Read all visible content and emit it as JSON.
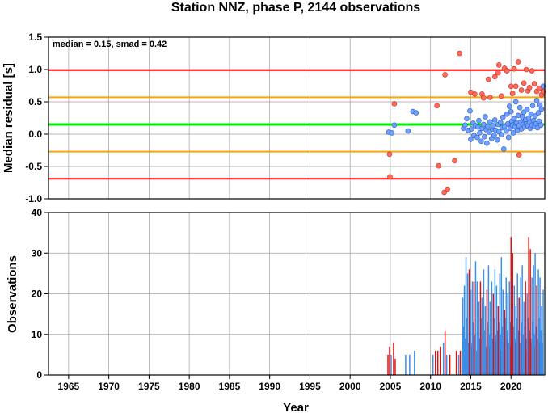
{
  "colors": {
    "grid": "#a0a0a0",
    "red_line": "#ff0000",
    "orange_line": "#ffa500",
    "green_line": "#00ee00",
    "point_in": "#6fa0ff",
    "point_out": "#ff6a5a",
    "bar_blue": "#3a8fe8",
    "bar_red": "#e01010"
  },
  "chart_data": [
    {
      "type": "scatter",
      "title": "Station NNZ, phase P, 2144 observations",
      "annotation": "median = 0.15, smad = 0.42",
      "ylabel": "Median residual [s]",
      "xlim": [
        1962.5,
        2024.2
      ],
      "ylim": [
        -1.0,
        1.5
      ],
      "yticks": [
        "-1.0",
        "-0.5",
        "0.0",
        "0.5",
        "1.0",
        "1.5"
      ],
      "ytick_values": [
        -1.0,
        -0.5,
        0.0,
        0.5,
        1.0,
        1.5
      ],
      "grid": true,
      "reference_lines": [
        {
          "y": 0.99,
          "color": "red"
        },
        {
          "y": 0.57,
          "color": "orange"
        },
        {
          "y": 0.15,
          "color": "green"
        },
        {
          "y": -0.27,
          "color": "orange"
        },
        {
          "y": -0.69,
          "color": "red"
        }
      ],
      "outliers": [
        [
          2004.9,
          -0.31
        ],
        [
          2004.95,
          -0.66
        ],
        [
          2005.5,
          0.47
        ],
        [
          2010.8,
          0.44
        ],
        [
          2011.0,
          -0.49
        ],
        [
          2011.8,
          0.92
        ],
        [
          2011.7,
          -0.9
        ],
        [
          2012.1,
          -0.85
        ],
        [
          2013.0,
          -0.41
        ],
        [
          2013.6,
          1.25
        ],
        [
          2015.0,
          0.65
        ],
        [
          2015.5,
          0.62
        ],
        [
          2016.4,
          0.62
        ],
        [
          2016.6,
          0.56
        ],
        [
          2017.2,
          0.85
        ],
        [
          2017.4,
          0.57
        ],
        [
          2018.0,
          0.89
        ],
        [
          2018.4,
          0.95
        ],
        [
          2018.5,
          1.07
        ],
        [
          2018.8,
          0.59
        ],
        [
          2019.2,
          1.02
        ],
        [
          2019.5,
          0.98
        ],
        [
          2020.0,
          0.74
        ],
        [
          2020.2,
          0.63
        ],
        [
          2020.4,
          1.01
        ],
        [
          2020.6,
          0.74
        ],
        [
          2020.9,
          1.12
        ],
        [
          2021.0,
          -0.32
        ],
        [
          2021.3,
          0.68
        ],
        [
          2021.6,
          0.79
        ],
        [
          2021.9,
          1.0
        ],
        [
          2022.1,
          0.67
        ],
        [
          2022.3,
          0.72
        ],
        [
          2022.6,
          0.98
        ],
        [
          2022.9,
          0.78
        ],
        [
          2023.2,
          0.66
        ],
        [
          2023.5,
          0.71
        ],
        [
          2023.8,
          0.61
        ],
        [
          2024.0,
          0.66
        ]
      ],
      "inliers": [
        [
          2004.8,
          0.03
        ],
        [
          2005.2,
          0.02
        ],
        [
          2005.5,
          0.14
        ],
        [
          2007.2,
          0.05
        ],
        [
          2007.8,
          0.35
        ],
        [
          2008.2,
          0.33
        ],
        [
          2014.1,
          0.09
        ],
        [
          2014.3,
          0.14
        ],
        [
          2014.5,
          0.24
        ],
        [
          2014.7,
          0.06
        ],
        [
          2014.9,
          0.36
        ],
        [
          2015.0,
          -0.08
        ],
        [
          2015.1,
          0.08
        ],
        [
          2015.3,
          0.17
        ],
        [
          2015.4,
          -0.02
        ],
        [
          2015.6,
          0.13
        ],
        [
          2015.8,
          -0.05
        ],
        [
          2015.9,
          0.11
        ],
        [
          2016.0,
          0.21
        ],
        [
          2016.1,
          0.02
        ],
        [
          2016.3,
          -0.11
        ],
        [
          2016.4,
          0.09
        ],
        [
          2016.6,
          0.15
        ],
        [
          2016.7,
          -0.04
        ],
        [
          2016.8,
          0.27
        ],
        [
          2016.9,
          0.07
        ],
        [
          2017.0,
          -0.14
        ],
        [
          2017.1,
          0.12
        ],
        [
          2017.3,
          0.03
        ],
        [
          2017.4,
          0.19
        ],
        [
          2017.6,
          -0.07
        ],
        [
          2017.7,
          0.08
        ],
        [
          2017.8,
          0.13
        ],
        [
          2017.9,
          -0.02
        ],
        [
          2018.0,
          0.22
        ],
        [
          2018.1,
          0.06
        ],
        [
          2018.3,
          -0.09
        ],
        [
          2018.4,
          0.15
        ],
        [
          2018.5,
          0.04
        ],
        [
          2018.7,
          0.18
        ],
        [
          2018.8,
          -0.01
        ],
        [
          2018.9,
          0.1
        ],
        [
          2019.0,
          0.26
        ],
        [
          2019.1,
          -0.23
        ],
        [
          2019.2,
          0.12
        ],
        [
          2019.4,
          0.05
        ],
        [
          2019.5,
          0.31
        ],
        [
          2019.6,
          0.16
        ],
        [
          2019.7,
          -0.05
        ],
        [
          2019.8,
          0.43
        ],
        [
          2019.9,
          0.09
        ],
        [
          2020.0,
          0.35
        ],
        [
          2020.1,
          0.2
        ],
        [
          2020.2,
          0.14
        ],
        [
          2020.3,
          0.02
        ],
        [
          2020.4,
          0.24
        ],
        [
          2020.5,
          0.11
        ],
        [
          2020.6,
          0.5
        ],
        [
          2020.7,
          0.17
        ],
        [
          2020.8,
          0.06
        ],
        [
          2020.9,
          0.29
        ],
        [
          2021.0,
          0.13
        ],
        [
          2021.1,
          0.41
        ],
        [
          2021.2,
          0.19
        ],
        [
          2021.3,
          0.08
        ],
        [
          2021.4,
          0.27
        ],
        [
          2021.5,
          0.15
        ],
        [
          2021.6,
          0.34
        ],
        [
          2021.7,
          0.11
        ],
        [
          2021.8,
          0.22
        ],
        [
          2021.9,
          0.16
        ],
        [
          2022.0,
          0.38
        ],
        [
          2022.1,
          0.13
        ],
        [
          2022.2,
          0.25
        ],
        [
          2022.3,
          0.18
        ],
        [
          2022.4,
          0.09
        ],
        [
          2022.5,
          0.31
        ],
        [
          2022.6,
          0.14
        ],
        [
          2022.7,
          0.44
        ],
        [
          2022.8,
          0.21
        ],
        [
          2022.9,
          0.12
        ],
        [
          2023.0,
          0.28
        ],
        [
          2023.1,
          0.16
        ],
        [
          2023.2,
          0.52
        ],
        [
          2023.3,
          0.1
        ],
        [
          2023.4,
          0.33
        ],
        [
          2023.5,
          0.2
        ],
        [
          2023.6,
          0.45
        ],
        [
          2023.7,
          0.14
        ],
        [
          2023.8,
          0.39
        ],
        [
          2023.9,
          0.62
        ],
        [
          2024.0,
          0.74
        ]
      ]
    },
    {
      "type": "bar",
      "xlabel": "Year",
      "ylabel": "Observations",
      "xlim": [
        1962.5,
        2024.2
      ],
      "ylim": [
        0,
        40
      ],
      "xticks": [
        "1965",
        "1970",
        "1975",
        "1980",
        "1985",
        "1990",
        "1995",
        "2000",
        "2005",
        "2010",
        "2015",
        "2020"
      ],
      "xtick_values": [
        1965,
        1970,
        1975,
        1980,
        1985,
        1990,
        1995,
        2000,
        2005,
        2010,
        2015,
        2020
      ],
      "yticks": [
        "0",
        "10",
        "20",
        "30",
        "40"
      ],
      "ytick_values": [
        0,
        10,
        20,
        30,
        40
      ],
      "grid": true,
      "bars": [
        [
          2004.7,
          5,
          "r"
        ],
        [
          2004.9,
          7,
          "r"
        ],
        [
          2005.1,
          5,
          "b"
        ],
        [
          2005.4,
          8,
          "r"
        ],
        [
          2005.6,
          4,
          "r"
        ],
        [
          2006.9,
          5,
          "b"
        ],
        [
          2007.4,
          5,
          "b"
        ],
        [
          2008.0,
          6,
          "b"
        ],
        [
          2010.3,
          5,
          "b"
        ],
        [
          2010.6,
          6,
          "r"
        ],
        [
          2010.9,
          6,
          "r"
        ],
        [
          2011.2,
          7,
          "r"
        ],
        [
          2011.6,
          8,
          "b"
        ],
        [
          2011.8,
          11,
          "r"
        ],
        [
          2012.0,
          5,
          "b"
        ],
        [
          2012.4,
          5,
          "r"
        ],
        [
          2013.2,
          6,
          "r"
        ],
        [
          2013.5,
          5,
          "b"
        ],
        [
          2013.7,
          6,
          "r"
        ],
        [
          2014.0,
          19,
          "b"
        ],
        [
          2014.2,
          22,
          "b"
        ],
        [
          2014.4,
          29,
          "b"
        ],
        [
          2014.6,
          25,
          "b"
        ],
        [
          2014.8,
          26,
          "r"
        ],
        [
          2015.0,
          21,
          "b"
        ],
        [
          2015.2,
          23,
          "b"
        ],
        [
          2015.4,
          23,
          "r"
        ],
        [
          2015.6,
          28,
          "b"
        ],
        [
          2015.8,
          23,
          "b"
        ],
        [
          2016.0,
          18,
          "b"
        ],
        [
          2016.2,
          23,
          "r"
        ],
        [
          2016.4,
          19,
          "b"
        ],
        [
          2016.6,
          26,
          "b"
        ],
        [
          2016.8,
          17,
          "b"
        ],
        [
          2017.0,
          21,
          "r"
        ],
        [
          2017.2,
          27,
          "b"
        ],
        [
          2017.4,
          18,
          "b"
        ],
        [
          2017.6,
          23,
          "b"
        ],
        [
          2017.8,
          20,
          "r"
        ],
        [
          2018.0,
          26,
          "b"
        ],
        [
          2018.2,
          22,
          "b"
        ],
        [
          2018.4,
          17,
          "r"
        ],
        [
          2018.6,
          25,
          "b"
        ],
        [
          2018.8,
          29,
          "b"
        ],
        [
          2019.0,
          21,
          "b"
        ],
        [
          2019.2,
          16,
          "r"
        ],
        [
          2019.4,
          24,
          "b"
        ],
        [
          2019.6,
          20,
          "b"
        ],
        [
          2019.8,
          23,
          "b"
        ],
        [
          2020.0,
          34,
          "r"
        ],
        [
          2020.2,
          30,
          "r"
        ],
        [
          2020.4,
          22,
          "b"
        ],
        [
          2020.6,
          17,
          "b"
        ],
        [
          2020.8,
          25,
          "b"
        ],
        [
          2021.0,
          19,
          "r"
        ],
        [
          2021.2,
          24,
          "b"
        ],
        [
          2021.4,
          27,
          "b"
        ],
        [
          2021.6,
          18,
          "b"
        ],
        [
          2021.8,
          23,
          "r"
        ],
        [
          2022.0,
          20,
          "b"
        ],
        [
          2022.2,
          34,
          "r"
        ],
        [
          2022.4,
          31,
          "r"
        ],
        [
          2022.6,
          24,
          "b"
        ],
        [
          2022.8,
          27,
          "b"
        ],
        [
          2023.0,
          30,
          "b"
        ],
        [
          2023.2,
          22,
          "r"
        ],
        [
          2023.4,
          26,
          "b"
        ],
        [
          2023.6,
          24,
          "b"
        ],
        [
          2023.8,
          17,
          "b"
        ],
        [
          2024.0,
          21,
          "b"
        ]
      ],
      "fill_bars_blue": [
        [
          2014.1,
          12
        ],
        [
          2014.3,
          9
        ],
        [
          2014.5,
          14
        ],
        [
          2014.7,
          8
        ],
        [
          2014.9,
          11
        ],
        [
          2015.1,
          7
        ],
        [
          2015.3,
          13
        ],
        [
          2015.5,
          10
        ],
        [
          2015.7,
          6
        ],
        [
          2015.9,
          12
        ],
        [
          2016.1,
          9
        ],
        [
          2016.3,
          14
        ],
        [
          2016.5,
          8
        ],
        [
          2016.7,
          11
        ],
        [
          2016.9,
          7
        ],
        [
          2017.1,
          13
        ],
        [
          2017.3,
          10
        ],
        [
          2017.5,
          12
        ],
        [
          2017.7,
          9
        ],
        [
          2017.9,
          14
        ],
        [
          2018.1,
          8
        ],
        [
          2018.3,
          11
        ],
        [
          2018.5,
          13
        ],
        [
          2018.7,
          10
        ],
        [
          2018.9,
          12
        ],
        [
          2019.1,
          9
        ],
        [
          2019.3,
          14
        ],
        [
          2019.5,
          11
        ],
        [
          2019.7,
          8
        ],
        [
          2019.9,
          13
        ],
        [
          2020.1,
          10
        ],
        [
          2020.3,
          12
        ],
        [
          2020.5,
          9
        ],
        [
          2020.7,
          14
        ],
        [
          2020.9,
          11
        ],
        [
          2021.1,
          8
        ],
        [
          2021.3,
          13
        ],
        [
          2021.5,
          10
        ],
        [
          2021.7,
          12
        ],
        [
          2021.9,
          9
        ],
        [
          2022.1,
          14
        ],
        [
          2022.3,
          11
        ],
        [
          2022.5,
          8
        ],
        [
          2022.7,
          13
        ],
        [
          2022.9,
          10
        ],
        [
          2023.1,
          12
        ],
        [
          2023.3,
          9
        ],
        [
          2023.5,
          14
        ],
        [
          2023.7,
          11
        ],
        [
          2023.9,
          8
        ]
      ],
      "fill_bars_red": [
        [
          2015.05,
          8
        ],
        [
          2015.85,
          6
        ],
        [
          2016.55,
          9
        ],
        [
          2017.35,
          7
        ],
        [
          2018.05,
          10
        ],
        [
          2018.65,
          6
        ],
        [
          2019.45,
          9
        ],
        [
          2019.95,
          7
        ],
        [
          2020.15,
          11
        ],
        [
          2020.55,
          8
        ],
        [
          2021.25,
          10
        ],
        [
          2021.85,
          6
        ],
        [
          2022.45,
          9
        ],
        [
          2022.95,
          7
        ],
        [
          2023.55,
          8
        ]
      ]
    }
  ]
}
